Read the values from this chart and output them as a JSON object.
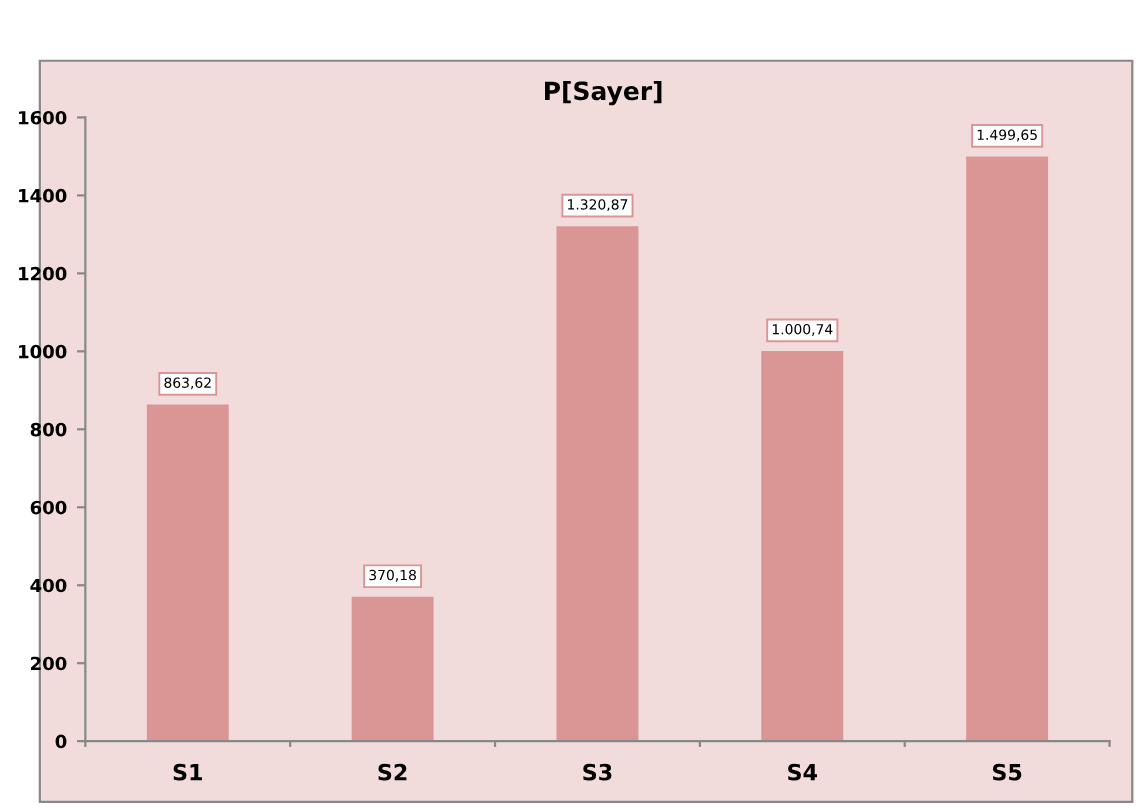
{
  "chart_data": {
    "type": "bar",
    "title": "P[Sayer]",
    "categories": [
      "S1",
      "S2",
      "S3",
      "S4",
      "S5"
    ],
    "values": [
      863.62,
      370.18,
      1320.87,
      1000.74,
      1499.65
    ],
    "value_labels": [
      "863,62",
      "370,18",
      "1.320,87",
      "1.000,74",
      "1.499,65"
    ],
    "color": "#d99694",
    "ylim": [
      0,
      1600
    ],
    "yticks": [
      0,
      200,
      400,
      600,
      800,
      1000,
      1200,
      1400,
      1600
    ],
    "grid": false,
    "legend": false
  }
}
